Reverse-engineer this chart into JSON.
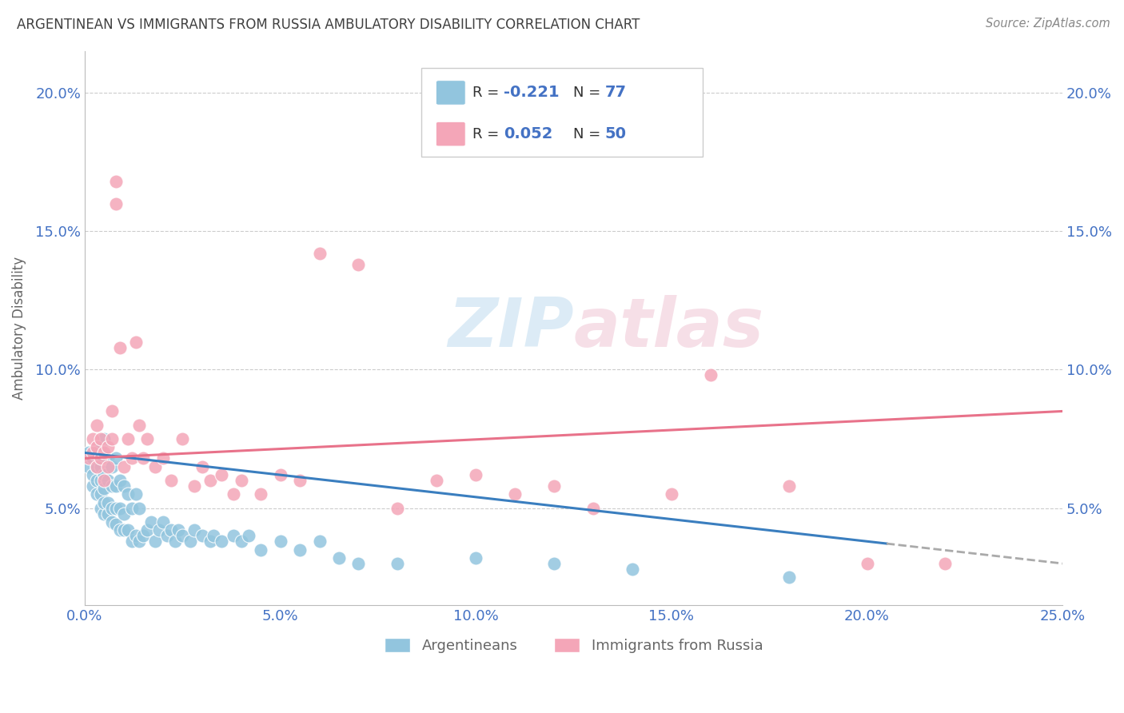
{
  "title": "ARGENTINEAN VS IMMIGRANTS FROM RUSSIA AMBULATORY DISABILITY CORRELATION CHART",
  "source": "Source: ZipAtlas.com",
  "ylabel": "Ambulatory Disability",
  "xlim": [
    0.0,
    0.25
  ],
  "ylim": [
    0.015,
    0.215
  ],
  "R_argentinean": -0.221,
  "N_argentinean": 77,
  "R_russia": 0.052,
  "N_russia": 50,
  "color_blue": "#92c5de",
  "color_pink": "#f4a6b8",
  "color_blue_line": "#3a7ebf",
  "color_pink_line": "#e8728a",
  "color_title": "#404040",
  "color_source": "#888888",
  "color_tick": "#4472c4",
  "watermark_color": "#d8e8f0",
  "watermark_color2": "#f0d8e0",
  "argentinean_x": [
    0.001,
    0.001,
    0.002,
    0.002,
    0.002,
    0.003,
    0.003,
    0.003,
    0.003,
    0.004,
    0.004,
    0.004,
    0.004,
    0.004,
    0.005,
    0.005,
    0.005,
    0.005,
    0.005,
    0.005,
    0.006,
    0.006,
    0.006,
    0.006,
    0.007,
    0.007,
    0.007,
    0.007,
    0.008,
    0.008,
    0.008,
    0.008,
    0.009,
    0.009,
    0.009,
    0.01,
    0.01,
    0.01,
    0.011,
    0.011,
    0.012,
    0.012,
    0.013,
    0.013,
    0.014,
    0.014,
    0.015,
    0.016,
    0.017,
    0.018,
    0.019,
    0.02,
    0.021,
    0.022,
    0.023,
    0.024,
    0.025,
    0.027,
    0.028,
    0.03,
    0.032,
    0.033,
    0.035,
    0.038,
    0.04,
    0.042,
    0.045,
    0.05,
    0.055,
    0.06,
    0.065,
    0.07,
    0.08,
    0.1,
    0.12,
    0.14,
    0.18
  ],
  "argentinean_y": [
    0.065,
    0.07,
    0.058,
    0.062,
    0.068,
    0.055,
    0.06,
    0.065,
    0.07,
    0.05,
    0.055,
    0.06,
    0.065,
    0.072,
    0.048,
    0.052,
    0.057,
    0.062,
    0.068,
    0.075,
    0.048,
    0.052,
    0.06,
    0.068,
    0.045,
    0.05,
    0.058,
    0.065,
    0.044,
    0.05,
    0.058,
    0.068,
    0.042,
    0.05,
    0.06,
    0.042,
    0.048,
    0.058,
    0.042,
    0.055,
    0.038,
    0.05,
    0.04,
    0.055,
    0.038,
    0.05,
    0.04,
    0.042,
    0.045,
    0.038,
    0.042,
    0.045,
    0.04,
    0.042,
    0.038,
    0.042,
    0.04,
    0.038,
    0.042,
    0.04,
    0.038,
    0.04,
    0.038,
    0.04,
    0.038,
    0.04,
    0.035,
    0.038,
    0.035,
    0.038,
    0.032,
    0.03,
    0.03,
    0.032,
    0.03,
    0.028,
    0.025
  ],
  "russia_x": [
    0.001,
    0.002,
    0.002,
    0.003,
    0.003,
    0.003,
    0.004,
    0.004,
    0.005,
    0.005,
    0.006,
    0.006,
    0.007,
    0.007,
    0.008,
    0.008,
    0.009,
    0.01,
    0.011,
    0.012,
    0.013,
    0.014,
    0.015,
    0.016,
    0.018,
    0.02,
    0.022,
    0.025,
    0.028,
    0.03,
    0.032,
    0.035,
    0.038,
    0.04,
    0.045,
    0.05,
    0.055,
    0.06,
    0.07,
    0.08,
    0.09,
    0.1,
    0.11,
    0.12,
    0.13,
    0.15,
    0.16,
    0.18,
    0.2,
    0.22
  ],
  "russia_y": [
    0.068,
    0.07,
    0.075,
    0.065,
    0.072,
    0.08,
    0.068,
    0.075,
    0.06,
    0.07,
    0.065,
    0.072,
    0.075,
    0.085,
    0.168,
    0.16,
    0.108,
    0.065,
    0.075,
    0.068,
    0.11,
    0.08,
    0.068,
    0.075,
    0.065,
    0.068,
    0.06,
    0.075,
    0.058,
    0.065,
    0.06,
    0.062,
    0.055,
    0.06,
    0.055,
    0.062,
    0.06,
    0.142,
    0.138,
    0.05,
    0.06,
    0.062,
    0.055,
    0.058,
    0.05,
    0.055,
    0.098,
    0.058,
    0.03,
    0.03
  ],
  "xticks": [
    0.0,
    0.05,
    0.1,
    0.15,
    0.2,
    0.25
  ],
  "xtick_labels": [
    "0.0%",
    "5.0%",
    "10.0%",
    "15.0%",
    "20.0%",
    "25.0%"
  ],
  "yticks": [
    0.05,
    0.1,
    0.15,
    0.2
  ],
  "ytick_labels": [
    "5.0%",
    "10.0%",
    "15.0%",
    "20.0%"
  ]
}
